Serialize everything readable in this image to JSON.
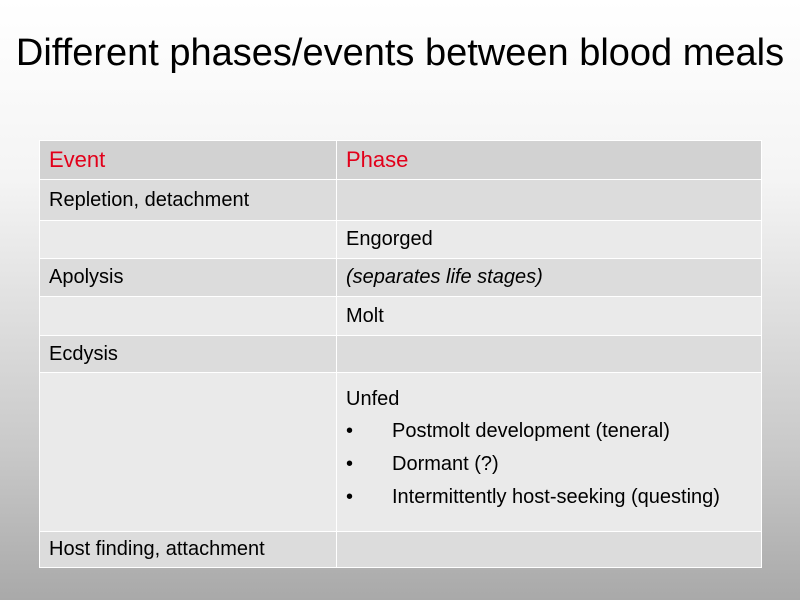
{
  "title": "Different phases/events between blood meals",
  "table": {
    "headers": {
      "event": "Event",
      "phase": "Phase"
    },
    "rows": [
      {
        "event": "Repletion, detachment",
        "phase": ""
      },
      {
        "event": "",
        "phase": "Engorged"
      },
      {
        "event": "Apolysis",
        "phase": "(separates life stages)"
      },
      {
        "event": "",
        "phase": "Molt"
      },
      {
        "event": "Ecdysis",
        "phase": ""
      },
      {
        "event": "",
        "phase": "Unfed",
        "bullets": [
          "Postmolt development (teneral)",
          "Dormant (?)",
          "Intermittently host-seeking (questing)"
        ]
      },
      {
        "event": "Host finding, attachment",
        "phase": ""
      }
    ]
  },
  "colors": {
    "header_text": "#e2001a",
    "highlight_text": "#2b2fa8"
  }
}
